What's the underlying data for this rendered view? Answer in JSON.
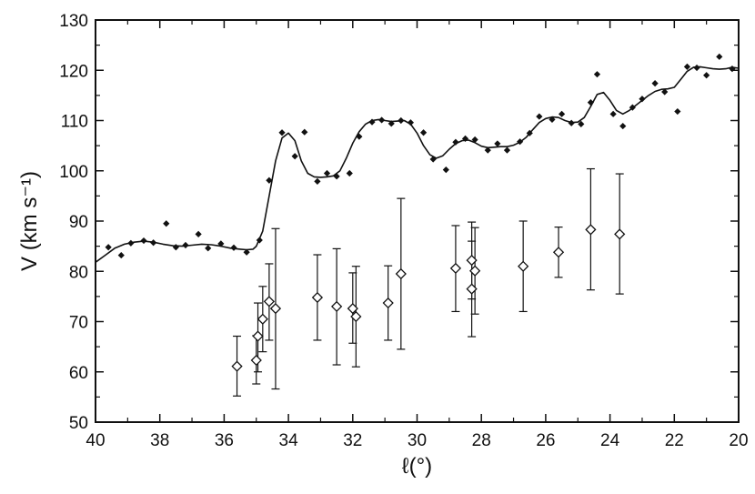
{
  "chart_data": {
    "type": "scatter",
    "title": "",
    "xlabel": "ℓ(°)",
    "ylabel": "V (km s⁻¹)",
    "xlim": [
      40,
      20
    ],
    "ylim": [
      50,
      130
    ],
    "x_reversed": true,
    "x_ticks": [
      40,
      38,
      36,
      34,
      32,
      30,
      28,
      26,
      24,
      22,
      20
    ],
    "y_ticks": [
      50,
      60,
      70,
      80,
      90,
      100,
      110,
      120,
      130
    ],
    "grid": false,
    "legend": "none",
    "colors": {
      "ink": "#111111",
      "background": "#ffffff"
    },
    "series": [
      {
        "kind": "points",
        "marker": "filled-diamond",
        "points": [
          [
            39.6,
            84.8
          ],
          [
            39.2,
            83.2
          ],
          [
            38.9,
            85.6
          ],
          [
            38.5,
            86.1
          ],
          [
            38.2,
            85.7
          ],
          [
            37.8,
            89.5
          ],
          [
            37.5,
            84.8
          ],
          [
            37.2,
            85.2
          ],
          [
            36.8,
            87.4
          ],
          [
            36.5,
            84.6
          ],
          [
            36.1,
            85.5
          ],
          [
            35.7,
            84.7
          ],
          [
            35.3,
            83.8
          ],
          [
            34.9,
            86.2
          ],
          [
            34.6,
            98.1
          ],
          [
            34.2,
            107.6
          ],
          [
            33.8,
            102.9
          ],
          [
            33.5,
            107.7
          ],
          [
            33.1,
            97.9
          ],
          [
            32.8,
            99.5
          ],
          [
            32.5,
            98.9
          ],
          [
            32.1,
            99.5
          ],
          [
            31.8,
            106.8
          ],
          [
            31.4,
            109.7
          ],
          [
            31.1,
            110.1
          ],
          [
            30.8,
            109.4
          ],
          [
            30.5,
            110.0
          ],
          [
            30.2,
            109.6
          ],
          [
            29.8,
            107.6
          ],
          [
            29.5,
            102.3
          ],
          [
            29.1,
            100.2
          ],
          [
            28.8,
            105.7
          ],
          [
            28.5,
            106.4
          ],
          [
            28.2,
            106.2
          ],
          [
            27.8,
            104.1
          ],
          [
            27.5,
            105.4
          ],
          [
            27.2,
            104.1
          ],
          [
            26.8,
            105.8
          ],
          [
            26.5,
            107.5
          ],
          [
            26.2,
            110.8
          ],
          [
            25.8,
            110.2
          ],
          [
            25.5,
            111.3
          ],
          [
            25.2,
            109.5
          ],
          [
            24.9,
            109.3
          ],
          [
            24.6,
            113.6
          ],
          [
            24.4,
            119.2
          ],
          [
            23.9,
            111.3
          ],
          [
            23.6,
            108.9
          ],
          [
            23.3,
            112.6
          ],
          [
            23.0,
            114.3
          ],
          [
            22.6,
            117.4
          ],
          [
            22.3,
            115.7
          ],
          [
            21.9,
            111.8
          ],
          [
            21.6,
            120.7
          ],
          [
            21.3,
            120.5
          ],
          [
            21.0,
            119.0
          ],
          [
            20.6,
            122.7
          ],
          [
            20.2,
            120.3
          ]
        ]
      },
      {
        "kind": "curve",
        "style": "solid-line",
        "points": [
          [
            40.0,
            81.8
          ],
          [
            39.7,
            83.2
          ],
          [
            39.4,
            84.6
          ],
          [
            39.1,
            85.4
          ],
          [
            38.8,
            85.8
          ],
          [
            38.5,
            86.0
          ],
          [
            38.2,
            85.8
          ],
          [
            37.9,
            85.4
          ],
          [
            37.6,
            85.1
          ],
          [
            37.3,
            85.0
          ],
          [
            37.0,
            85.2
          ],
          [
            36.7,
            85.4
          ],
          [
            36.4,
            85.3
          ],
          [
            36.1,
            85.0
          ],
          [
            35.8,
            84.6
          ],
          [
            35.5,
            84.4
          ],
          [
            35.3,
            84.3
          ],
          [
            35.1,
            84.4
          ],
          [
            35.0,
            85.0
          ],
          [
            34.8,
            88.0
          ],
          [
            34.6,
            95.0
          ],
          [
            34.4,
            102.0
          ],
          [
            34.2,
            106.5
          ],
          [
            34.0,
            107.5
          ],
          [
            33.8,
            106.0
          ],
          [
            33.6,
            102.0
          ],
          [
            33.4,
            99.5
          ],
          [
            33.2,
            98.8
          ],
          [
            33.0,
            98.7
          ],
          [
            32.8,
            98.8
          ],
          [
            32.6,
            99.0
          ],
          [
            32.4,
            100.0
          ],
          [
            32.2,
            102.5
          ],
          [
            32.0,
            105.5
          ],
          [
            31.8,
            107.8
          ],
          [
            31.6,
            109.3
          ],
          [
            31.4,
            110.0
          ],
          [
            31.2,
            110.2
          ],
          [
            31.0,
            110.0
          ],
          [
            30.8,
            109.8
          ],
          [
            30.6,
            109.9
          ],
          [
            30.4,
            110.0
          ],
          [
            30.2,
            109.3
          ],
          [
            30.0,
            107.5
          ],
          [
            29.8,
            105.0
          ],
          [
            29.6,
            103.2
          ],
          [
            29.4,
            102.5
          ],
          [
            29.2,
            103.0
          ],
          [
            29.0,
            104.3
          ],
          [
            28.8,
            105.4
          ],
          [
            28.6,
            106.0
          ],
          [
            28.4,
            106.1
          ],
          [
            28.2,
            105.6
          ],
          [
            28.0,
            104.9
          ],
          [
            27.8,
            104.6
          ],
          [
            27.6,
            104.7
          ],
          [
            27.4,
            104.8
          ],
          [
            27.2,
            104.8
          ],
          [
            27.0,
            105.1
          ],
          [
            26.8,
            105.7
          ],
          [
            26.6,
            106.7
          ],
          [
            26.4,
            108.2
          ],
          [
            26.2,
            109.6
          ],
          [
            26.0,
            110.4
          ],
          [
            25.8,
            110.7
          ],
          [
            25.6,
            110.6
          ],
          [
            25.4,
            110.0
          ],
          [
            25.2,
            109.6
          ],
          [
            25.0,
            109.7
          ],
          [
            24.8,
            110.6
          ],
          [
            24.6,
            112.8
          ],
          [
            24.4,
            115.2
          ],
          [
            24.2,
            115.6
          ],
          [
            24.0,
            114.0
          ],
          [
            23.8,
            112.0
          ],
          [
            23.6,
            111.3
          ],
          [
            23.4,
            112.0
          ],
          [
            23.2,
            113.0
          ],
          [
            23.0,
            114.0
          ],
          [
            22.8,
            115.0
          ],
          [
            22.6,
            115.8
          ],
          [
            22.4,
            116.2
          ],
          [
            22.2,
            116.3
          ],
          [
            22.0,
            116.6
          ],
          [
            21.8,
            118.2
          ],
          [
            21.6,
            119.8
          ],
          [
            21.4,
            120.6
          ],
          [
            21.2,
            120.7
          ],
          [
            21.0,
            120.5
          ],
          [
            20.8,
            120.3
          ],
          [
            20.6,
            120.2
          ],
          [
            20.4,
            120.3
          ],
          [
            20.2,
            120.6
          ],
          [
            20.0,
            120.4
          ]
        ]
      },
      {
        "kind": "points-with-error",
        "marker": "open-diamond",
        "points": [
          {
            "x": 35.6,
            "y": 61.1,
            "low": 55.2,
            "high": 67.1
          },
          {
            "x": 35.0,
            "y": 62.3,
            "low": 57.6,
            "high": 67.2
          },
          {
            "x": 34.95,
            "y": 67.1,
            "low": 60.0,
            "high": 73.7
          },
          {
            "x": 34.8,
            "y": 70.5,
            "low": 64.0,
            "high": 77.0
          },
          {
            "x": 34.6,
            "y": 74.0,
            "low": 66.3,
            "high": 81.5
          },
          {
            "x": 34.4,
            "y": 72.6,
            "low": 56.6,
            "high": 88.5
          },
          {
            "x": 33.1,
            "y": 74.8,
            "low": 66.3,
            "high": 83.3
          },
          {
            "x": 32.5,
            "y": 73.0,
            "low": 61.4,
            "high": 84.5
          },
          {
            "x": 32.0,
            "y": 72.6,
            "low": 65.7,
            "high": 79.7
          },
          {
            "x": 31.9,
            "y": 71.0,
            "low": 61.0,
            "high": 81.0
          },
          {
            "x": 30.9,
            "y": 73.7,
            "low": 66.3,
            "high": 81.1
          },
          {
            "x": 30.5,
            "y": 79.5,
            "low": 64.5,
            "high": 94.5
          },
          {
            "x": 28.8,
            "y": 80.6,
            "low": 72.0,
            "high": 89.1
          },
          {
            "x": 28.3,
            "y": 82.2,
            "low": 74.5,
            "high": 89.8
          },
          {
            "x": 28.3,
            "y": 76.5,
            "low": 67.0,
            "high": 86.0
          },
          {
            "x": 28.2,
            "y": 80.1,
            "low": 71.5,
            "high": 88.7
          },
          {
            "x": 26.7,
            "y": 81.0,
            "low": 72.0,
            "high": 90.0
          },
          {
            "x": 25.6,
            "y": 83.8,
            "low": 78.8,
            "high": 88.8
          },
          {
            "x": 24.6,
            "y": 88.3,
            "low": 76.3,
            "high": 100.4
          },
          {
            "x": 23.7,
            "y": 87.4,
            "low": 75.5,
            "high": 99.4
          }
        ]
      }
    ]
  }
}
